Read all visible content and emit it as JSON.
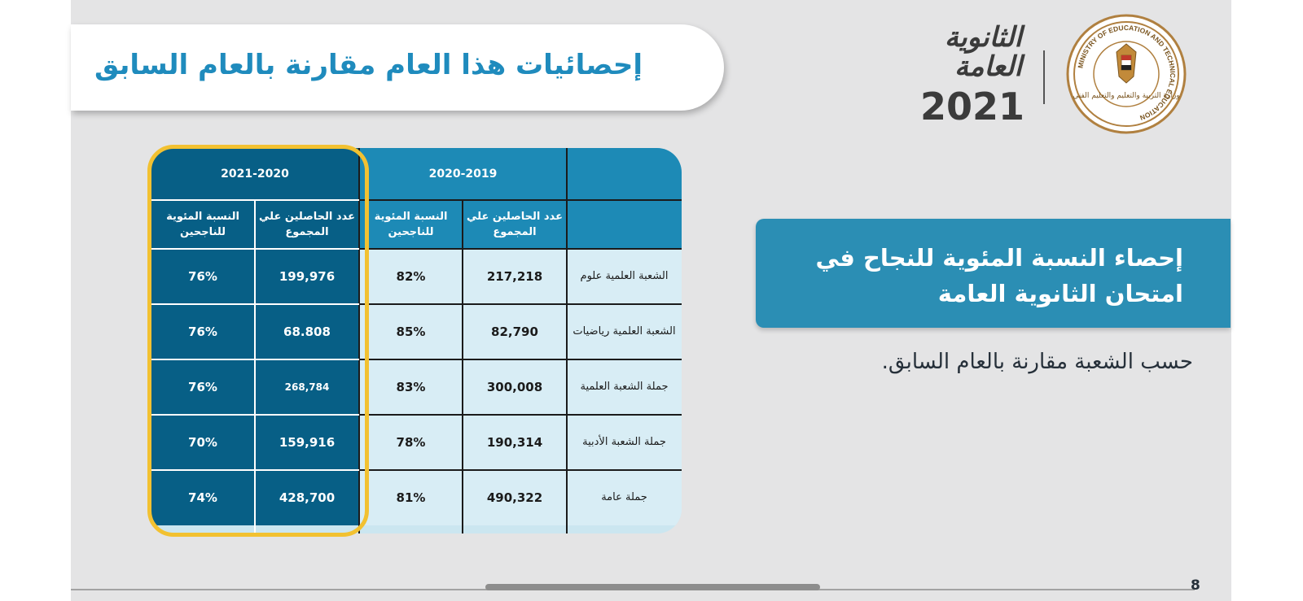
{
  "header": {
    "title": "إحصائيات هذا العام مقارنة بالعام السابق",
    "logo_year": "2021",
    "logo_script": "الثانوية العامة",
    "seal_text_en": "MINISTRY OF EDUCATION AND TECHNICAL EDUCATION",
    "seal_text_ar": "وزارة التربية والتعليم والتعليم الفني"
  },
  "info_box": {
    "title": "إحصاء النسبة المئوية للنجاح في امتحان الثانوية العامة"
  },
  "subtitle": "حسب الشعبة مقارنة بالعام السابق.",
  "page_number": "8",
  "table": {
    "years": [
      "2021-2020",
      "2020-2019"
    ],
    "col_headers": [
      "النسبة المئوية للناجحين",
      "عدد الحاصلين علي المجموع",
      "النسبة المئوية للناجحين",
      "عدد الحاصلين علي المجموع"
    ],
    "rows": [
      {
        "label": "الشعبة العلمية علوم",
        "pct_2021": "76%",
        "count_2021": "199,976",
        "pct_2020": "82%",
        "count_2020": "217,218"
      },
      {
        "label": "الشعبة العلمية رياضيات",
        "pct_2021": "76%",
        "count_2021": "68.808",
        "pct_2020": "85%",
        "count_2020": "82,790"
      },
      {
        "label": "جملة الشعبة العلمية",
        "pct_2021": "76%",
        "count_2021": "268,784",
        "pct_2020": "83%",
        "count_2020": "300,008"
      },
      {
        "label": "جملة الشعبة الأدبية",
        "pct_2021": "70%",
        "count_2021": "159,916",
        "pct_2020": "78%",
        "count_2020": "190,314"
      },
      {
        "label": "جملة عامة",
        "pct_2021": "74%",
        "count_2021": "428,700",
        "pct_2020": "81%",
        "count_2020": "490,322"
      }
    ]
  },
  "colors": {
    "dark_column": "#075f86",
    "mid_header": "#1d8ab6",
    "highlight_border": "#f2c131",
    "light_cell": "#d8edf5",
    "title_blue": "#1f8bbd"
  }
}
